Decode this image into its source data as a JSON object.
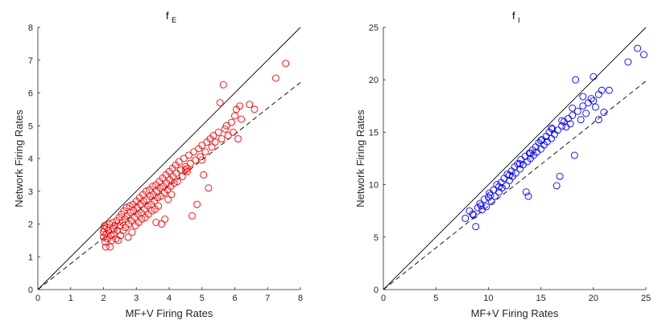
{
  "chart_data": [
    {
      "type": "scatter",
      "title_main": "f",
      "title_sub": "E",
      "xlabel": "MF+V Firing Rates",
      "ylabel": "Network Firing Rates",
      "xlim": [
        0,
        8
      ],
      "ylim": [
        0,
        8
      ],
      "xticks": [
        "0",
        "1",
        "2",
        "3",
        "4",
        "5",
        "6",
        "7",
        "8"
      ],
      "yticks": [
        "0",
        "1",
        "2",
        "3",
        "4",
        "5",
        "6",
        "7",
        "8"
      ],
      "grid": false,
      "marker_color": "#ff0000",
      "reference_lines": [
        {
          "style": "solid",
          "slope": 1.0
        },
        {
          "style": "dashed",
          "slope": 0.79
        }
      ],
      "points": [
        [
          2.0,
          1.6
        ],
        [
          2.0,
          1.75
        ],
        [
          2.02,
          1.85
        ],
        [
          2.03,
          1.95
        ],
        [
          2.05,
          1.45
        ],
        [
          2.07,
          1.3
        ],
        [
          2.08,
          1.7
        ],
        [
          2.1,
          1.9
        ],
        [
          2.12,
          1.55
        ],
        [
          2.15,
          1.8
        ],
        [
          2.18,
          2.0
        ],
        [
          2.2,
          1.3
        ],
        [
          2.22,
          1.65
        ],
        [
          2.25,
          1.5
        ],
        [
          2.28,
          2.05
        ],
        [
          2.3,
          1.85
        ],
        [
          2.32,
          1.7
        ],
        [
          2.35,
          1.95
        ],
        [
          2.38,
          1.55
        ],
        [
          2.4,
          2.1
        ],
        [
          2.42,
          1.8
        ],
        [
          2.45,
          1.5
        ],
        [
          2.48,
          2.2
        ],
        [
          2.5,
          1.95
        ],
        [
          2.52,
          1.65
        ],
        [
          2.55,
          2.3
        ],
        [
          2.57,
          2.05
        ],
        [
          2.6,
          1.8
        ],
        [
          2.62,
          2.4
        ],
        [
          2.65,
          2.15
        ],
        [
          2.67,
          1.9
        ],
        [
          2.7,
          2.5
        ],
        [
          2.72,
          2.25
        ],
        [
          2.75,
          1.6
        ],
        [
          2.77,
          2.0
        ],
        [
          2.8,
          2.55
        ],
        [
          2.82,
          2.35
        ],
        [
          2.85,
          2.1
        ],
        [
          2.87,
          1.75
        ],
        [
          2.9,
          2.6
        ],
        [
          2.92,
          2.4
        ],
        [
          2.95,
          2.2
        ],
        [
          2.97,
          1.95
        ],
        [
          3.0,
          2.7
        ],
        [
          3.02,
          2.5
        ],
        [
          3.05,
          2.3
        ],
        [
          3.07,
          2.05
        ],
        [
          3.1,
          2.8
        ],
        [
          3.12,
          2.6
        ],
        [
          3.15,
          2.35
        ],
        [
          3.17,
          2.15
        ],
        [
          3.2,
          2.9
        ],
        [
          3.22,
          2.7
        ],
        [
          3.25,
          2.45
        ],
        [
          3.27,
          2.2
        ],
        [
          3.3,
          3.0
        ],
        [
          3.32,
          2.75
        ],
        [
          3.35,
          2.55
        ],
        [
          3.37,
          2.3
        ],
        [
          3.4,
          3.05
        ],
        [
          3.42,
          2.85
        ],
        [
          3.45,
          2.6
        ],
        [
          3.47,
          2.4
        ],
        [
          3.5,
          3.15
        ],
        [
          3.52,
          2.9
        ],
        [
          3.55,
          2.7
        ],
        [
          3.57,
          2.45
        ],
        [
          3.6,
          3.2
        ],
        [
          3.62,
          3.0
        ],
        [
          3.65,
          2.8
        ],
        [
          3.67,
          2.55
        ],
        [
          3.7,
          3.3
        ],
        [
          3.72,
          3.1
        ],
        [
          3.75,
          2.85
        ],
        [
          3.77,
          2.0
        ],
        [
          3.8,
          3.4
        ],
        [
          3.82,
          3.15
        ],
        [
          3.85,
          2.95
        ],
        [
          3.87,
          2.15
        ],
        [
          3.9,
          3.5
        ],
        [
          3.92,
          3.25
        ],
        [
          3.95,
          3.05
        ],
        [
          3.97,
          2.75
        ],
        [
          4.0,
          3.6
        ],
        [
          4.02,
          3.35
        ],
        [
          4.05,
          3.15
        ],
        [
          4.07,
          2.9
        ],
        [
          4.1,
          3.7
        ],
        [
          4.12,
          3.45
        ],
        [
          4.15,
          3.25
        ],
        [
          4.2,
          3.8
        ],
        [
          4.22,
          3.55
        ],
        [
          4.25,
          3.3
        ],
        [
          4.3,
          3.9
        ],
        [
          4.35,
          3.65
        ],
        [
          4.4,
          3.45
        ],
        [
          4.45,
          4.0
        ],
        [
          4.5,
          3.75
        ],
        [
          4.55,
          3.6
        ],
        [
          4.6,
          4.1
        ],
        [
          4.65,
          3.85
        ],
        [
          4.7,
          2.25
        ],
        [
          4.75,
          4.2
        ],
        [
          4.8,
          3.95
        ],
        [
          4.85,
          2.6
        ],
        [
          4.9,
          4.3
        ],
        [
          4.95,
          4.05
        ],
        [
          5.0,
          4.4
        ],
        [
          5.05,
          3.5
        ],
        [
          5.1,
          4.2
        ],
        [
          5.15,
          4.5
        ],
        [
          5.2,
          3.1
        ],
        [
          5.25,
          4.6
        ],
        [
          5.3,
          4.35
        ],
        [
          5.35,
          4.7
        ],
        [
          5.4,
          4.5
        ],
        [
          5.5,
          4.8
        ],
        [
          5.55,
          5.7
        ],
        [
          5.6,
          4.6
        ],
        [
          5.65,
          6.25
        ],
        [
          5.7,
          4.9
        ],
        [
          5.75,
          5.0
        ],
        [
          5.8,
          4.7
        ],
        [
          5.9,
          5.1
        ],
        [
          5.95,
          4.8
        ],
        [
          6.0,
          5.3
        ],
        [
          6.05,
          5.5
        ],
        [
          6.1,
          4.6
        ],
        [
          6.15,
          5.6
        ],
        [
          6.2,
          5.2
        ],
        [
          6.45,
          5.65
        ],
        [
          6.6,
          5.5
        ],
        [
          7.25,
          6.45
        ],
        [
          7.55,
          6.9
        ],
        [
          3.6,
          2.05
        ],
        [
          4.5,
          3.65
        ],
        [
          4.55,
          3.7
        ],
        [
          5.0,
          3.95
        ]
      ]
    },
    {
      "type": "scatter",
      "title_main": "f",
      "title_sub": "I",
      "xlabel": "MF+V Firing Rates",
      "ylabel": "Network Firing Rates",
      "xlim": [
        0,
        25
      ],
      "ylim": [
        0,
        25
      ],
      "xticks": [
        "0",
        "5",
        "10",
        "15",
        "20",
        "25"
      ],
      "yticks": [
        "0",
        "5",
        "10",
        "15",
        "20",
        "25"
      ],
      "grid": false,
      "marker_color": "#0000ff",
      "reference_lines": [
        {
          "style": "solid",
          "slope": 1.0
        },
        {
          "style": "dashed",
          "slope": 0.795
        }
      ],
      "points": [
        [
          7.8,
          6.8
        ],
        [
          8.2,
          7.5
        ],
        [
          8.5,
          7.2
        ],
        [
          8.8,
          6.0
        ],
        [
          9.0,
          7.8
        ],
        [
          9.2,
          8.2
        ],
        [
          9.4,
          7.6
        ],
        [
          9.6,
          8.6
        ],
        [
          9.8,
          7.9
        ],
        [
          10.0,
          8.8
        ],
        [
          10.1,
          9.2
        ],
        [
          10.3,
          8.4
        ],
        [
          10.5,
          9.5
        ],
        [
          10.6,
          8.9
        ],
        [
          10.8,
          10.0
        ],
        [
          11.0,
          9.3
        ],
        [
          11.2,
          10.2
        ],
        [
          11.3,
          9.7
        ],
        [
          11.5,
          10.6
        ],
        [
          11.7,
          9.9
        ],
        [
          11.8,
          11.0
        ],
        [
          12.0,
          10.4
        ],
        [
          12.2,
          11.3
        ],
        [
          12.3,
          10.8
        ],
        [
          12.5,
          11.7
        ],
        [
          12.6,
          11.1
        ],
        [
          12.8,
          12.0
        ],
        [
          13.0,
          11.5
        ],
        [
          13.1,
          12.4
        ],
        [
          13.3,
          11.9
        ],
        [
          13.5,
          12.7
        ],
        [
          13.6,
          9.3
        ],
        [
          13.7,
          12.2
        ],
        [
          13.8,
          8.9
        ],
        [
          13.9,
          13.0
        ],
        [
          14.0,
          12.5
        ],
        [
          14.2,
          13.3
        ],
        [
          14.3,
          12.8
        ],
        [
          14.5,
          13.6
        ],
        [
          14.6,
          13.1
        ],
        [
          14.8,
          14.0
        ],
        [
          15.0,
          13.4
        ],
        [
          15.1,
          14.3
        ],
        [
          15.3,
          13.8
        ],
        [
          15.5,
          14.6
        ],
        [
          15.6,
          14.1
        ],
        [
          15.8,
          15.0
        ],
        [
          16.0,
          14.4
        ],
        [
          16.1,
          15.3
        ],
        [
          16.3,
          14.8
        ],
        [
          16.5,
          9.9
        ],
        [
          16.6,
          15.2
        ],
        [
          16.8,
          10.8
        ],
        [
          17.0,
          15.6
        ],
        [
          17.2,
          16.0
        ],
        [
          17.4,
          15.5
        ],
        [
          17.6,
          16.3
        ],
        [
          17.8,
          15.8
        ],
        [
          18.0,
          16.6
        ],
        [
          18.2,
          12.8
        ],
        [
          18.3,
          20.0
        ],
        [
          18.5,
          17.0
        ],
        [
          18.8,
          16.2
        ],
        [
          19.0,
          17.5
        ],
        [
          19.3,
          16.8
        ],
        [
          19.5,
          17.8
        ],
        [
          19.8,
          18.2
        ],
        [
          20.0,
          20.3
        ],
        [
          20.2,
          17.4
        ],
        [
          20.5,
          18.6
        ],
        [
          20.8,
          19.0
        ],
        [
          21.0,
          16.9
        ],
        [
          21.5,
          19.0
        ],
        [
          23.3,
          21.7
        ],
        [
          24.2,
          23.0
        ],
        [
          24.8,
          22.4
        ],
        [
          9.3,
          8.0
        ],
        [
          10.2,
          9.0
        ],
        [
          11.0,
          9.8
        ],
        [
          12.0,
          10.9
        ],
        [
          13.0,
          12.0
        ],
        [
          14.0,
          13.0
        ],
        [
          15.0,
          14.2
        ],
        [
          16.0,
          15.4
        ],
        [
          17.0,
          16.1
        ],
        [
          18.0,
          17.3
        ],
        [
          19.0,
          18.4
        ],
        [
          20.0,
          18.0
        ],
        [
          20.5,
          16.2
        ],
        [
          8.6,
          7.1
        ]
      ]
    }
  ]
}
